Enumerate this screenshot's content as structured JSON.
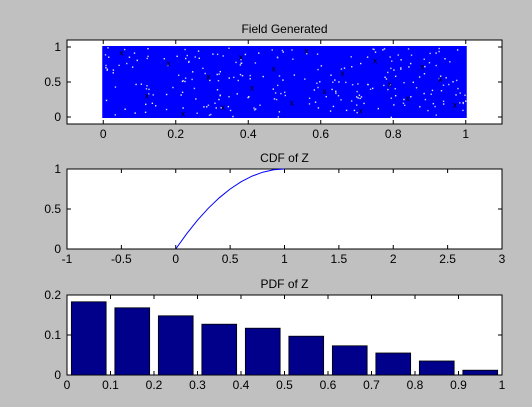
{
  "colors": {
    "figure_bg": "#c0c0c0",
    "axes_bg": "#ffffff",
    "scatter_color": "#0000ff",
    "line_color": "#0000ff",
    "bar_fill": "#00008b",
    "axis_color": "#000000"
  },
  "chart_data": [
    {
      "type": "scatter",
      "title": "Field Generated",
      "xlabel": "",
      "ylabel": "",
      "xlim": [
        -0.1,
        1.1
      ],
      "ylim": [
        -0.1,
        1.1
      ],
      "xticks": [
        0,
        0.2,
        0.4,
        0.6,
        0.8,
        1
      ],
      "xtick_labels": [
        "0",
        "0.2",
        "0.4",
        "0.6",
        "0.8",
        "1"
      ],
      "yticks": [
        0,
        0.5,
        1
      ],
      "ytick_labels": [
        "0",
        "0.5",
        "1"
      ],
      "point_region": {
        "x": [
          0,
          1
        ],
        "y": [
          0,
          1
        ]
      },
      "points": [
        [
          0.05,
          0.92
        ],
        [
          0.12,
          0.31
        ],
        [
          0.18,
          0.77
        ],
        [
          0.22,
          0.05
        ],
        [
          0.29,
          0.58
        ],
        [
          0.33,
          0.14
        ],
        [
          0.38,
          0.86
        ],
        [
          0.41,
          0.42
        ],
        [
          0.47,
          0.69
        ],
        [
          0.52,
          0.21
        ],
        [
          0.56,
          0.95
        ],
        [
          0.61,
          0.37
        ],
        [
          0.66,
          0.63
        ],
        [
          0.71,
          0.09
        ],
        [
          0.75,
          0.81
        ],
        [
          0.79,
          0.47
        ],
        [
          0.84,
          0.27
        ],
        [
          0.88,
          0.72
        ],
        [
          0.93,
          0.54
        ],
        [
          0.97,
          0.18
        ]
      ],
      "grid": false
    },
    {
      "type": "line",
      "title": "CDF of Z",
      "xlabel": "",
      "ylabel": "",
      "xlim": [
        -1,
        3
      ],
      "ylim": [
        0,
        1
      ],
      "xticks": [
        -1,
        -0.5,
        0,
        0.5,
        1,
        1.5,
        2,
        2.5,
        3
      ],
      "xtick_labels": [
        "-1",
        "-0.5",
        "0",
        "0.5",
        "1",
        "1.5",
        "2",
        "2.5",
        "3"
      ],
      "yticks": [
        0,
        0.5,
        1
      ],
      "ytick_labels": [
        "0",
        "0.5",
        "1"
      ],
      "x": [
        0,
        0.1,
        0.2,
        0.3,
        0.4,
        0.5,
        0.6,
        0.7,
        0.8,
        0.9,
        1.0
      ],
      "y": [
        0,
        0.19,
        0.36,
        0.51,
        0.64,
        0.75,
        0.84,
        0.91,
        0.96,
        0.99,
        1.0
      ],
      "grid": false
    },
    {
      "type": "bar",
      "title": "PDF of Z",
      "xlabel": "",
      "ylabel": "",
      "xlim": [
        0,
        1
      ],
      "ylim": [
        0,
        0.2
      ],
      "xticks": [
        0,
        0.1,
        0.2,
        0.3,
        0.4,
        0.5,
        0.6,
        0.7,
        0.8,
        0.9,
        1
      ],
      "xtick_labels": [
        "0",
        "0.1",
        "0.2",
        "0.3",
        "0.4",
        "0.5",
        "0.6",
        "0.7",
        "0.8",
        "0.9",
        "1"
      ],
      "yticks": [
        0,
        0.1,
        0.2
      ],
      "ytick_labels": [
        "0",
        "0.1",
        "0.2"
      ],
      "x": [
        0.05,
        0.15,
        0.25,
        0.35,
        0.45,
        0.55,
        0.65,
        0.75,
        0.85,
        0.95
      ],
      "values": [
        0.183,
        0.168,
        0.148,
        0.127,
        0.117,
        0.097,
        0.073,
        0.055,
        0.035,
        0.012
      ],
      "grid": false
    }
  ]
}
